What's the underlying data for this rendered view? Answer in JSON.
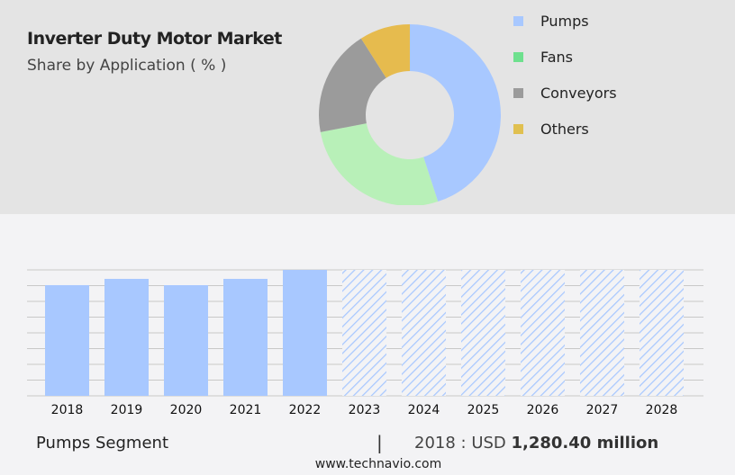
{
  "chart_data": [
    {
      "type": "pie",
      "title": "Inverter Duty Motor Market",
      "subtitle": "Share by Application ( % )",
      "donut": true,
      "legend_position": "right",
      "slices": [
        {
          "label": "Pumps",
          "value": 45,
          "color": "#a8c8ff"
        },
        {
          "label": "Fans",
          "value": 27,
          "color": "#b8f0b8",
          "legend_color": "#6ee08e"
        },
        {
          "label": "Conveyors",
          "value": 19,
          "color": "#9b9b9b"
        },
        {
          "label": "Others",
          "value": 9,
          "color": "#e6bb4e",
          "legend_color": "#e0c050"
        }
      ]
    },
    {
      "type": "bar",
      "categories": [
        "2018",
        "2019",
        "2020",
        "2021",
        "2022",
        "2023",
        "2024",
        "2025",
        "2026",
        "2027",
        "2028"
      ],
      "values": [
        1280.4,
        1353,
        1280,
        1353,
        1457,
        null,
        null,
        null,
        null,
        null,
        null
      ],
      "forecast_from": "2023",
      "bar_color": "#a8c8ff",
      "grid": true,
      "ylim": [
        0,
        1457
      ]
    }
  ],
  "footer": {
    "segment": "Pumps Segment",
    "separator": "|",
    "year_label": "2018 : USD ",
    "value": "1,280.40 million",
    "source": "www.technavio.com"
  }
}
